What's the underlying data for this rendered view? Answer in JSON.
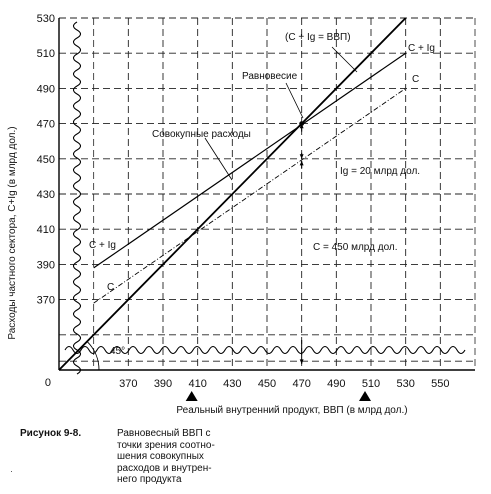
{
  "chart_data": {
    "type": "line",
    "xlabel": "Реальный внутренний продукт, ВВП (в млрд дол.)",
    "ylabel": "Расходы частного сектора, C+Ig (в млрд дол.)",
    "x_ticks": [
      370,
      390,
      410,
      430,
      450,
      470,
      490,
      510,
      530,
      550
    ],
    "y_ticks": [
      370,
      390,
      410,
      430,
      450,
      470,
      490,
      510,
      530
    ],
    "origin_label": "0",
    "xlim": [
      330,
      570
    ],
    "ylim": [
      330,
      530
    ],
    "axis_break": true,
    "grid": true,
    "series": [
      {
        "name": "C + Ig",
        "x": [
          350,
          530
        ],
        "y": [
          388,
          510
        ]
      },
      {
        "name": "C",
        "x": [
          350,
          530
        ],
        "y": [
          368,
          490
        ]
      },
      {
        "name": "C + Ig = ВВП",
        "x": [
          330,
          530
        ],
        "y": [
          330,
          530
        ]
      }
    ],
    "annotations": {
      "line_45_label": "(C + Ig = ВВП)",
      "line_ci_label": "C + Ig",
      "line_c_label": "C",
      "line_ci_left_label": "C + Ig",
      "line_c_left_label": "C",
      "equilibrium": "Равновесие",
      "aggregate": "Совокупные расходы",
      "investment": "Ig = 20 млрд дол.",
      "consumption": "C = 450 млрд дол.",
      "angle": "45°"
    },
    "equilibrium_point": {
      "x": 470,
      "y": 470
    },
    "investment_gap": 20,
    "consumption_at_eq": 450
  },
  "caption": {
    "label": "Рисунок 9-8.",
    "text": "Равновесный ВВП с\nточки зрения соотно-\nшения совокупных\nрасходов и внутрен-\nнего продукта"
  },
  "stray_mark": "·"
}
